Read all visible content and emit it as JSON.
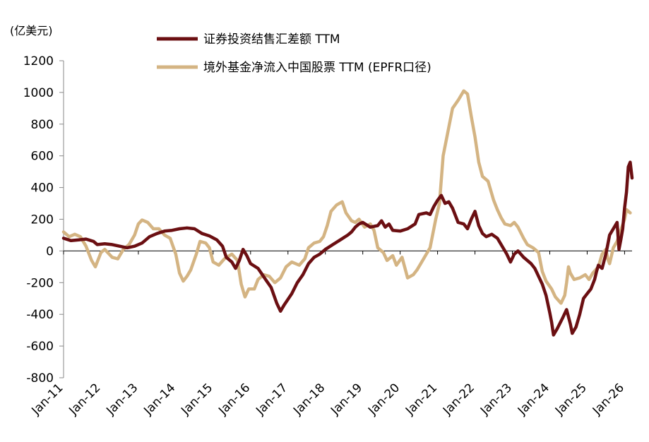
{
  "chart_data": {
    "type": "line",
    "title": "",
    "unit_label": "(亿美元)",
    "xlabel": "",
    "ylabel": "",
    "ylim": [
      -800,
      1200
    ],
    "yticks": [
      1200,
      1000,
      800,
      600,
      400,
      200,
      0,
      -200,
      -400,
      -600,
      -800
    ],
    "xlim": [
      2011.0,
      2026.2
    ],
    "x_tick_labels": [
      "Jan-11",
      "Jan-12",
      "Jan-13",
      "Jan-14",
      "Jan-15",
      "Jan-16",
      "Jan-17",
      "Jan-18",
      "Jan-19",
      "Jan-20",
      "Jan-21",
      "Jan-22",
      "Jan-23",
      "Jan-24",
      "Jan-25",
      "Jan-26"
    ],
    "x_tick_values": [
      2011,
      2012,
      2013,
      2014,
      2015,
      2016,
      2017,
      2018,
      2019,
      2020,
      2021,
      2022,
      2023,
      2024,
      2025,
      2026
    ],
    "grid": false,
    "legend": "top",
    "series": [
      {
        "name": "证券投资结售汇差额 TTM",
        "color": "#6b0f12",
        "points": [
          [
            2011.0,
            80
          ],
          [
            2011.2,
            65
          ],
          [
            2011.4,
            70
          ],
          [
            2011.6,
            75
          ],
          [
            2011.8,
            60
          ],
          [
            2011.9,
            40
          ],
          [
            2012.1,
            45
          ],
          [
            2012.3,
            40
          ],
          [
            2012.5,
            30
          ],
          [
            2012.7,
            20
          ],
          [
            2012.9,
            30
          ],
          [
            2013.1,
            50
          ],
          [
            2013.3,
            90
          ],
          [
            2013.5,
            110
          ],
          [
            2013.7,
            125
          ],
          [
            2013.9,
            130
          ],
          [
            2014.1,
            140
          ],
          [
            2014.3,
            145
          ],
          [
            2014.5,
            140
          ],
          [
            2014.7,
            110
          ],
          [
            2014.9,
            95
          ],
          [
            2015.1,
            70
          ],
          [
            2015.25,
            30
          ],
          [
            2015.35,
            -40
          ],
          [
            2015.5,
            -70
          ],
          [
            2015.6,
            -110
          ],
          [
            2015.7,
            -60
          ],
          [
            2015.8,
            10
          ],
          [
            2015.9,
            -30
          ],
          [
            2016.0,
            -80
          ],
          [
            2016.2,
            -110
          ],
          [
            2016.4,
            -180
          ],
          [
            2016.55,
            -230
          ],
          [
            2016.7,
            -330
          ],
          [
            2016.8,
            -380
          ],
          [
            2016.9,
            -340
          ],
          [
            2017.1,
            -270
          ],
          [
            2017.25,
            -200
          ],
          [
            2017.4,
            -150
          ],
          [
            2017.55,
            -80
          ],
          [
            2017.7,
            -40
          ],
          [
            2017.85,
            -20
          ],
          [
            2018.0,
            10
          ],
          [
            2018.2,
            40
          ],
          [
            2018.4,
            70
          ],
          [
            2018.6,
            100
          ],
          [
            2018.7,
            120
          ],
          [
            2018.8,
            150
          ],
          [
            2018.9,
            170
          ],
          [
            2019.0,
            180
          ],
          [
            2019.2,
            150
          ],
          [
            2019.4,
            160
          ],
          [
            2019.5,
            190
          ],
          [
            2019.6,
            150
          ],
          [
            2019.7,
            170
          ],
          [
            2019.8,
            130
          ],
          [
            2020.0,
            125
          ],
          [
            2020.2,
            140
          ],
          [
            2020.4,
            170
          ],
          [
            2020.5,
            230
          ],
          [
            2020.7,
            240
          ],
          [
            2020.8,
            230
          ],
          [
            2020.9,
            280
          ],
          [
            2021.0,
            320
          ],
          [
            2021.1,
            350
          ],
          [
            2021.2,
            300
          ],
          [
            2021.3,
            310
          ],
          [
            2021.4,
            270
          ],
          [
            2021.55,
            180
          ],
          [
            2021.7,
            170
          ],
          [
            2021.8,
            140
          ],
          [
            2021.9,
            200
          ],
          [
            2022.0,
            250
          ],
          [
            2022.1,
            160
          ],
          [
            2022.2,
            110
          ],
          [
            2022.3,
            90
          ],
          [
            2022.45,
            105
          ],
          [
            2022.6,
            80
          ],
          [
            2022.75,
            20
          ],
          [
            2022.85,
            -20
          ],
          [
            2022.95,
            -70
          ],
          [
            2023.05,
            -20
          ],
          [
            2023.15,
            0
          ],
          [
            2023.3,
            -40
          ],
          [
            2023.5,
            -80
          ],
          [
            2023.6,
            -110
          ],
          [
            2023.7,
            -160
          ],
          [
            2023.8,
            -210
          ],
          [
            2023.9,
            -280
          ],
          [
            2024.0,
            -390
          ],
          [
            2024.05,
            -450
          ],
          [
            2024.1,
            -530
          ],
          [
            2024.2,
            -490
          ],
          [
            2024.35,
            -420
          ],
          [
            2024.45,
            -370
          ],
          [
            2024.55,
            -460
          ],
          [
            2024.6,
            -520
          ],
          [
            2024.7,
            -480
          ],
          [
            2024.8,
            -400
          ],
          [
            2024.9,
            -300
          ],
          [
            2025.0,
            -270
          ],
          [
            2025.1,
            -240
          ],
          [
            2025.2,
            -180
          ],
          [
            2025.25,
            -130
          ],
          [
            2025.3,
            -90
          ],
          [
            2025.4,
            -110
          ],
          [
            2025.5,
            -20
          ],
          [
            2025.55,
            40
          ],
          [
            2025.6,
            100
          ],
          [
            2025.7,
            140
          ],
          [
            2025.8,
            180
          ],
          [
            2025.85,
            10
          ],
          [
            2025.9,
            70
          ],
          [
            2025.95,
            140
          ],
          [
            2026.0,
            270
          ],
          [
            2026.05,
            370
          ],
          [
            2026.1,
            530
          ],
          [
            2026.15,
            560
          ],
          [
            2026.2,
            460
          ]
        ]
      },
      {
        "name": "境外基金净流入中国股票 TTM (EPFR口径)",
        "color": "#d4b483",
        "points": [
          [
            2011.0,
            120
          ],
          [
            2011.15,
            90
          ],
          [
            2011.3,
            105
          ],
          [
            2011.45,
            90
          ],
          [
            2011.6,
            30
          ],
          [
            2011.75,
            -60
          ],
          [
            2011.85,
            -100
          ],
          [
            2012.0,
            -10
          ],
          [
            2012.1,
            10
          ],
          [
            2012.3,
            -40
          ],
          [
            2012.45,
            -50
          ],
          [
            2012.6,
            10
          ],
          [
            2012.75,
            40
          ],
          [
            2012.9,
            100
          ],
          [
            2013.0,
            170
          ],
          [
            2013.1,
            195
          ],
          [
            2013.25,
            180
          ],
          [
            2013.4,
            140
          ],
          [
            2013.55,
            140
          ],
          [
            2013.7,
            100
          ],
          [
            2013.85,
            80
          ],
          [
            2014.0,
            -20
          ],
          [
            2014.1,
            -140
          ],
          [
            2014.2,
            -190
          ],
          [
            2014.3,
            -160
          ],
          [
            2014.4,
            -120
          ],
          [
            2014.55,
            -20
          ],
          [
            2014.65,
            60
          ],
          [
            2014.8,
            50
          ],
          [
            2014.9,
            20
          ],
          [
            2015.0,
            -70
          ],
          [
            2015.15,
            -90
          ],
          [
            2015.3,
            -50
          ],
          [
            2015.5,
            -20
          ],
          [
            2015.65,
            -60
          ],
          [
            2015.75,
            -210
          ],
          [
            2015.85,
            -290
          ],
          [
            2015.95,
            -240
          ],
          [
            2016.1,
            -240
          ],
          [
            2016.2,
            -180
          ],
          [
            2016.35,
            -150
          ],
          [
            2016.5,
            -160
          ],
          [
            2016.65,
            -200
          ],
          [
            2016.8,
            -170
          ],
          [
            2016.95,
            -100
          ],
          [
            2017.1,
            -70
          ],
          [
            2017.3,
            -90
          ],
          [
            2017.45,
            -50
          ],
          [
            2017.55,
            20
          ],
          [
            2017.7,
            50
          ],
          [
            2017.85,
            60
          ],
          [
            2017.95,
            90
          ],
          [
            2018.05,
            160
          ],
          [
            2018.15,
            250
          ],
          [
            2018.3,
            290
          ],
          [
            2018.45,
            310
          ],
          [
            2018.55,
            240
          ],
          [
            2018.7,
            190
          ],
          [
            2018.8,
            180
          ],
          [
            2018.9,
            200
          ],
          [
            2019.05,
            150
          ],
          [
            2019.2,
            170
          ],
          [
            2019.3,
            130
          ],
          [
            2019.4,
            20
          ],
          [
            2019.55,
            -10
          ],
          [
            2019.65,
            -60
          ],
          [
            2019.8,
            -30
          ],
          [
            2019.9,
            -90
          ],
          [
            2020.05,
            -40
          ],
          [
            2020.2,
            -170
          ],
          [
            2020.35,
            -150
          ],
          [
            2020.45,
            -120
          ],
          [
            2020.55,
            -80
          ],
          [
            2020.7,
            -20
          ],
          [
            2020.8,
            20
          ],
          [
            2020.95,
            200
          ],
          [
            2021.05,
            300
          ],
          [
            2021.15,
            600
          ],
          [
            2021.3,
            780
          ],
          [
            2021.4,
            900
          ],
          [
            2021.55,
            950
          ],
          [
            2021.7,
            1010
          ],
          [
            2021.8,
            990
          ],
          [
            2021.9,
            850
          ],
          [
            2022.0,
            720
          ],
          [
            2022.1,
            560
          ],
          [
            2022.2,
            470
          ],
          [
            2022.35,
            440
          ],
          [
            2022.5,
            320
          ],
          [
            2022.6,
            260
          ],
          [
            2022.7,
            210
          ],
          [
            2022.8,
            170
          ],
          [
            2022.95,
            160
          ],
          [
            2023.05,
            180
          ],
          [
            2023.15,
            150
          ],
          [
            2023.3,
            80
          ],
          [
            2023.4,
            40
          ],
          [
            2023.55,
            20
          ],
          [
            2023.7,
            -10
          ],
          [
            2023.8,
            -130
          ],
          [
            2023.9,
            -190
          ],
          [
            2024.05,
            -240
          ],
          [
            2024.15,
            -290
          ],
          [
            2024.3,
            -330
          ],
          [
            2024.4,
            -280
          ],
          [
            2024.45,
            -200
          ],
          [
            2024.5,
            -100
          ],
          [
            2024.55,
            -140
          ],
          [
            2024.65,
            -180
          ],
          [
            2024.8,
            -170
          ],
          [
            2024.95,
            -150
          ],
          [
            2025.05,
            -180
          ],
          [
            2025.15,
            -140
          ],
          [
            2025.3,
            -100
          ],
          [
            2025.4,
            -20
          ],
          [
            2025.5,
            10
          ],
          [
            2025.55,
            -50
          ],
          [
            2025.6,
            -80
          ],
          [
            2025.7,
            20
          ],
          [
            2025.8,
            60
          ],
          [
            2025.9,
            130
          ],
          [
            2026.0,
            200
          ],
          [
            2026.05,
            260
          ],
          [
            2026.15,
            240
          ]
        ]
      }
    ]
  }
}
